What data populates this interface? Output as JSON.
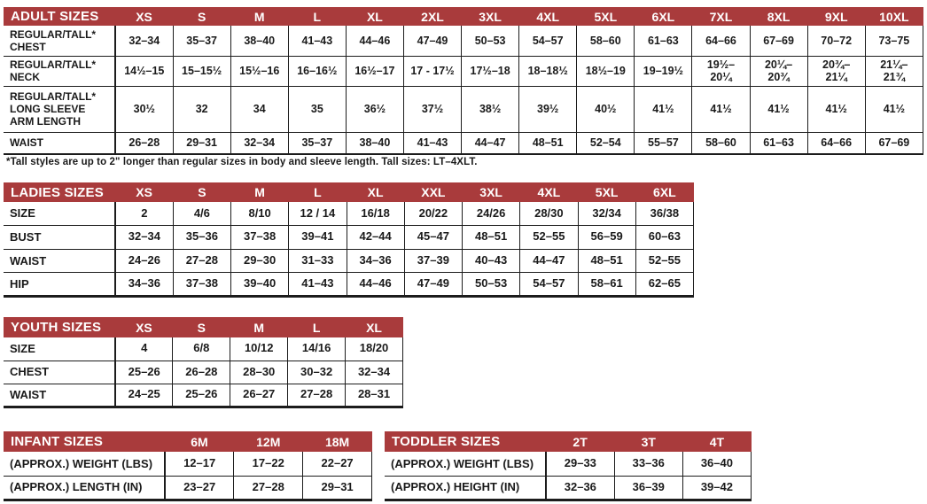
{
  "colors": {
    "accent_red": "#A93B3C",
    "grid_black": "#1C1C1C",
    "text": "#1A1A1A",
    "header_text": "#FFFFFF",
    "background": "#FFFFFF"
  },
  "tables": {
    "adult": {
      "title": "ADULT SIZES",
      "columns": [
        "XS",
        "S",
        "M",
        "L",
        "XL",
        "2XL",
        "3XL",
        "4XL",
        "5XL",
        "6XL",
        "7XL",
        "8XL",
        "9XL",
        "10XL"
      ],
      "rows": [
        {
          "label": "REGULAR/TALL*\nCHEST",
          "values": [
            "32–34",
            "35–37",
            "38–40",
            "41–43",
            "44–46",
            "47–49",
            "50–53",
            "54–57",
            "58–60",
            "61–63",
            "64–66",
            "67–69",
            "70–72",
            "73–75"
          ]
        },
        {
          "label": "REGULAR/TALL*\nNECK",
          "values": [
            "14½–15",
            "15–15½",
            "15½–16",
            "16–16½",
            "16½–17",
            "17 - 17½",
            "17½–18",
            "18–18½",
            "18½–19",
            "19–19½",
            "19½–\n20¼",
            "20¼–\n20¾",
            "20¾–\n21¼",
            "21¼–\n21¾"
          ]
        },
        {
          "label": "REGULAR/TALL*\nLONG SLEEVE\nARM LENGTH",
          "values": [
            "30½",
            "32",
            "34",
            "35",
            "36½",
            "37½",
            "38½",
            "39½",
            "40½",
            "41½",
            "41½",
            "41½",
            "41½",
            "41½"
          ]
        },
        {
          "label": "WAIST",
          "values": [
            "26–28",
            "29–31",
            "32–34",
            "35–37",
            "38–40",
            "41–43",
            "44–47",
            "48–51",
            "52–54",
            "55–57",
            "58–60",
            "61–63",
            "64–66",
            "67–69"
          ]
        }
      ],
      "footnote": "*Tall styles are up to 2\" longer than regular sizes in body and sleeve length. Tall sizes: LT–4XLT."
    },
    "ladies": {
      "title": "LADIES SIZES",
      "columns": [
        "XS",
        "S",
        "M",
        "L",
        "XL",
        "XXL",
        "3XL",
        "4XL",
        "5XL",
        "6XL"
      ],
      "rows": [
        {
          "label": "SIZE",
          "values": [
            "2",
            "4/6",
            "8/10",
            "12 / 14",
            "16/18",
            "20/22",
            "24/26",
            "28/30",
            "32/34",
            "36/38"
          ]
        },
        {
          "label": "BUST",
          "values": [
            "32–34",
            "35–36",
            "37–38",
            "39–41",
            "42–44",
            "45–47",
            "48–51",
            "52–55",
            "56–59",
            "60–63"
          ]
        },
        {
          "label": "WAIST",
          "values": [
            "24–26",
            "27–28",
            "29–30",
            "31–33",
            "34–36",
            "37–39",
            "40–43",
            "44–47",
            "48–51",
            "52–55"
          ]
        },
        {
          "label": "HIP",
          "values": [
            "34–36",
            "37–38",
            "39–40",
            "41–43",
            "44–46",
            "47–49",
            "50–53",
            "54–57",
            "58–61",
            "62–65"
          ]
        }
      ]
    },
    "youth": {
      "title": "YOUTH SIZES",
      "columns": [
        "XS",
        "S",
        "M",
        "L",
        "XL"
      ],
      "rows": [
        {
          "label": "SIZE",
          "values": [
            "4",
            "6/8",
            "10/12",
            "14/16",
            "18/20"
          ]
        },
        {
          "label": "CHEST",
          "values": [
            "25–26",
            "26–28",
            "28–30",
            "30–32",
            "32–34"
          ]
        },
        {
          "label": "WAIST",
          "values": [
            "24–25",
            "25–26",
            "26–27",
            "27–28",
            "28–31"
          ]
        }
      ]
    },
    "infant": {
      "title": "INFANT SIZES",
      "columns": [
        "6M",
        "12M",
        "18M"
      ],
      "rows": [
        {
          "label": "(APPROX.) WEIGHT (LBS)",
          "values": [
            "12–17",
            "17–22",
            "22–27"
          ]
        },
        {
          "label": "(APPROX.) LENGTH (IN)",
          "values": [
            "23–27",
            "27–28",
            "29–31"
          ]
        }
      ]
    },
    "toddler": {
      "title": "TODDLER SIZES",
      "columns": [
        "2T",
        "3T",
        "4T"
      ],
      "rows": [
        {
          "label": "(APPROX.) WEIGHT (LBS)",
          "values": [
            "29–33",
            "33–36",
            "36–40"
          ]
        },
        {
          "label": "(APPROX.) HEIGHT (IN)",
          "values": [
            "32–36",
            "36–39",
            "39–42"
          ]
        }
      ]
    }
  }
}
